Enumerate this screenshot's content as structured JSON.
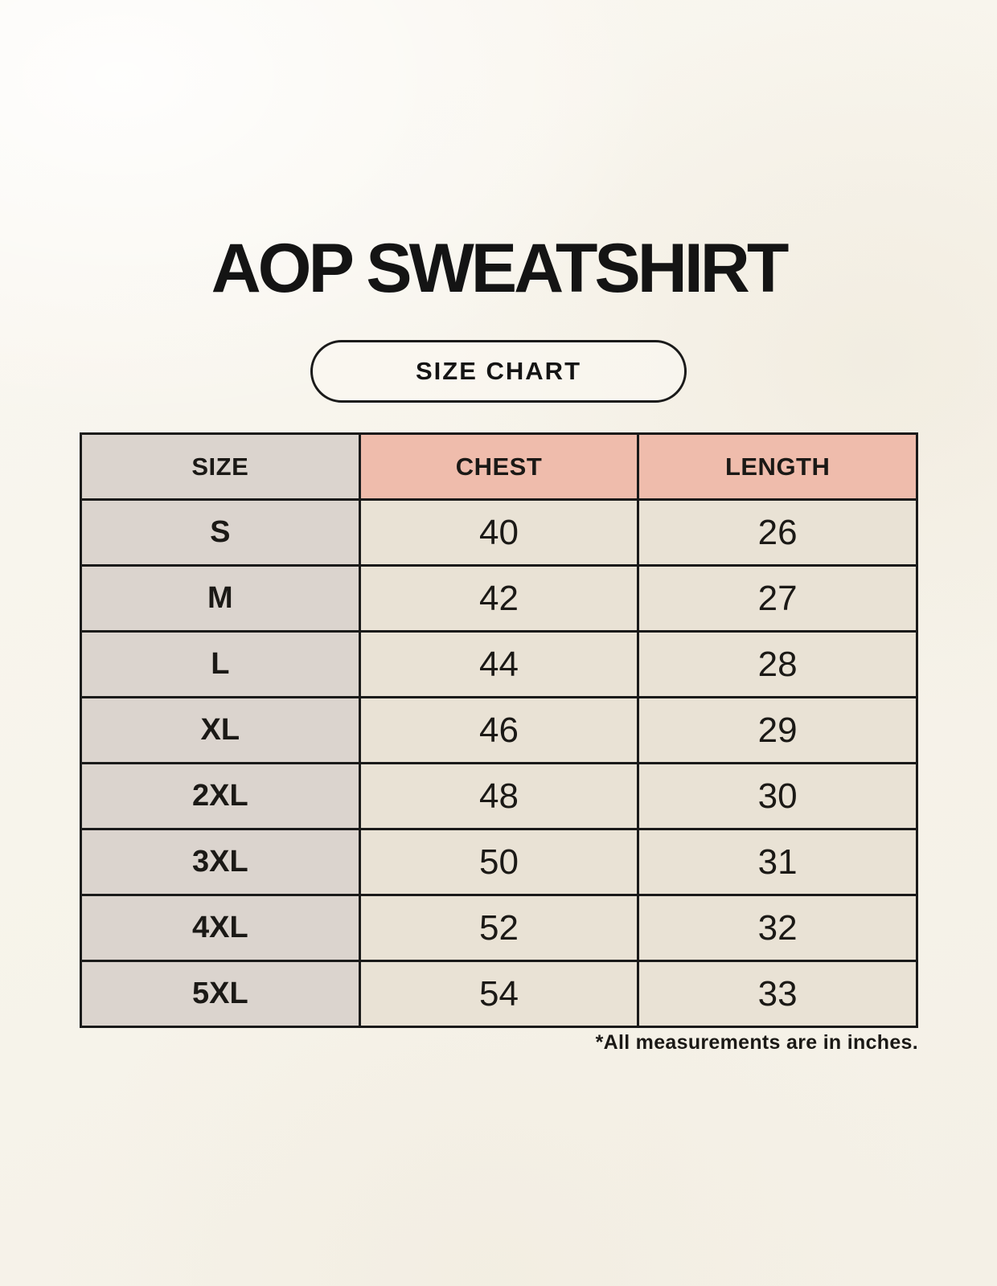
{
  "page": {
    "title": "AOP SWEATSHIRT",
    "size_chart_badge": "SIZE CHART",
    "footnote": "*All measurements are in inches."
  },
  "chart_data": {
    "type": "table",
    "title": "AOP SWEATSHIRT",
    "subtitle": "SIZE CHART",
    "columns": [
      "SIZE",
      "CHEST",
      "LENGTH"
    ],
    "rows": [
      [
        "S",
        "40",
        "26"
      ],
      [
        "M",
        "42",
        "27"
      ],
      [
        "L",
        "44",
        "28"
      ],
      [
        "XL",
        "46",
        "29"
      ],
      [
        "2XL",
        "48",
        "30"
      ],
      [
        "3XL",
        "50",
        "31"
      ],
      [
        "4XL",
        "52",
        "32"
      ],
      [
        "5XL",
        "54",
        "33"
      ]
    ],
    "units_note": "*All measurements are in inches."
  },
  "colors": {
    "page-bg": "#F8F5ED",
    "size-col-bg": "#DBD4CE",
    "header-accent-bg": "#EFBCAC",
    "cell-bg": "#E9E2D5",
    "border": "#1A1A1A",
    "text": "#171513"
  }
}
